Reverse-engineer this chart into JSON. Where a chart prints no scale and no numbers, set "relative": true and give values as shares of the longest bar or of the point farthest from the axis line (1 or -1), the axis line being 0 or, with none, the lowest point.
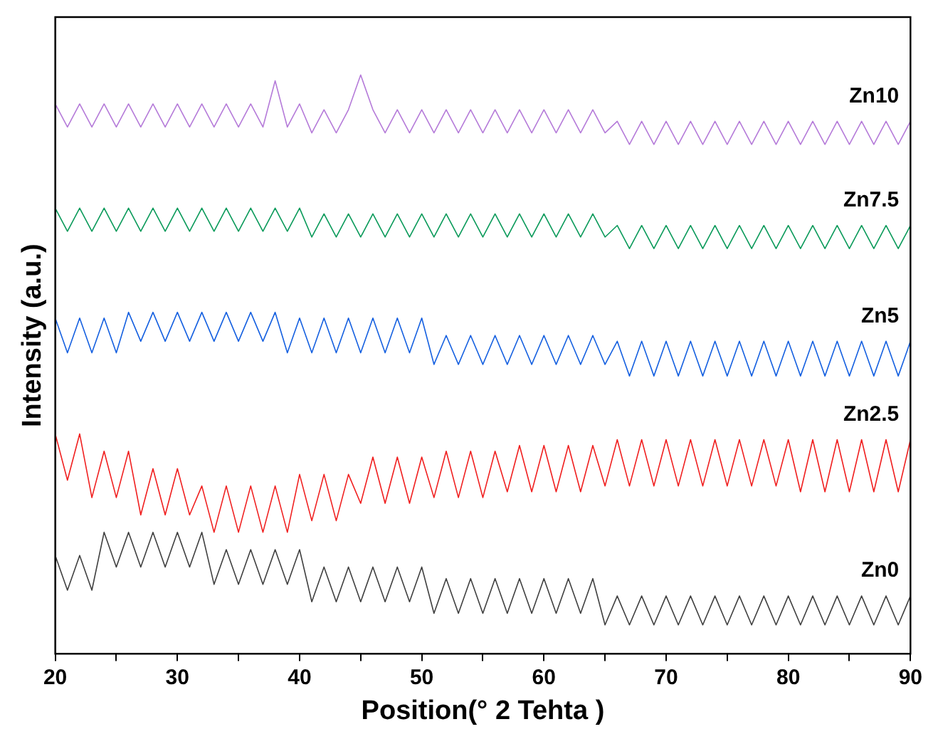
{
  "chart_data": {
    "type": "line",
    "relative": true,
    "xlabel": "Position(° 2 Tehta )",
    "ylabel": "Intensity (a.u.)",
    "grid": false,
    "legend": false,
    "marker": "none",
    "line_style": "solid",
    "xlim": [
      20,
      90
    ],
    "xticks": [
      20,
      {
        "value": 25,
        "label": null
      },
      30,
      {
        "value": 35,
        "label": null
      },
      40,
      {
        "value": 45,
        "label": null
      },
      50,
      {
        "value": 55,
        "label": null
      },
      60,
      {
        "value": 65,
        "label": null
      },
      70,
      {
        "value": 75,
        "label": null
      },
      80,
      {
        "value": 85,
        "label": null
      },
      90
    ],
    "x": [
      20,
      21,
      22,
      23,
      24,
      25,
      26,
      27,
      28,
      29,
      30,
      31,
      32,
      33,
      34,
      35,
      36,
      37,
      38,
      39,
      40,
      41,
      42,
      43,
      44,
      45,
      46,
      47,
      48,
      49,
      50,
      51,
      52,
      53,
      54,
      55,
      56,
      57,
      58,
      59,
      60,
      61,
      62,
      63,
      64,
      65,
      66,
      67,
      68,
      69,
      70,
      71,
      72,
      73,
      74,
      75,
      76,
      77,
      78,
      79,
      80,
      81,
      82,
      83,
      84,
      85,
      86,
      87,
      88,
      89,
      90
    ],
    "series": [
      {
        "name": "Zn10",
        "color": "#b57bd9",
        "values": [
          0.95,
          0.91,
          0.95,
          0.91,
          0.95,
          0.91,
          0.95,
          0.91,
          0.95,
          0.91,
          0.95,
          0.91,
          0.95,
          0.91,
          0.95,
          0.91,
          0.95,
          0.91,
          0.99,
          0.91,
          0.95,
          0.9,
          0.94,
          0.9,
          0.94,
          1,
          0.94,
          0.9,
          0.94,
          0.9,
          0.94,
          0.9,
          0.94,
          0.9,
          0.94,
          0.9,
          0.94,
          0.9,
          0.94,
          0.9,
          0.94,
          0.9,
          0.94,
          0.9,
          0.94,
          0.9,
          0.92,
          0.88,
          0.92,
          0.88,
          0.92,
          0.88,
          0.92,
          0.88,
          0.92,
          0.88,
          0.92,
          0.88,
          0.92,
          0.88,
          0.92,
          0.88,
          0.92,
          0.88,
          0.92,
          0.88,
          0.92,
          0.88,
          0.92,
          0.88,
          0.92
        ]
      },
      {
        "name": "Zn7.5",
        "color": "#0a9a5a",
        "values": [
          0.77,
          0.73,
          0.77,
          0.73,
          0.77,
          0.73,
          0.77,
          0.73,
          0.77,
          0.73,
          0.77,
          0.73,
          0.77,
          0.73,
          0.77,
          0.73,
          0.77,
          0.73,
          0.77,
          0.73,
          0.77,
          0.72,
          0.76,
          0.72,
          0.76,
          0.72,
          0.76,
          0.72,
          0.76,
          0.72,
          0.76,
          0.72,
          0.76,
          0.72,
          0.76,
          0.72,
          0.76,
          0.72,
          0.76,
          0.72,
          0.76,
          0.72,
          0.76,
          0.72,
          0.76,
          0.72,
          0.74,
          0.7,
          0.74,
          0.7,
          0.74,
          0.7,
          0.74,
          0.7,
          0.74,
          0.7,
          0.74,
          0.7,
          0.74,
          0.7,
          0.74,
          0.7,
          0.74,
          0.7,
          0.74,
          0.7,
          0.74,
          0.7,
          0.74,
          0.7,
          0.74
        ]
      },
      {
        "name": "Zn5",
        "color": "#1560e0",
        "values": [
          0.58,
          0.52,
          0.58,
          0.52,
          0.58,
          0.52,
          0.59,
          0.54,
          0.59,
          0.54,
          0.59,
          0.54,
          0.59,
          0.54,
          0.59,
          0.54,
          0.59,
          0.54,
          0.59,
          0.52,
          0.58,
          0.52,
          0.58,
          0.52,
          0.58,
          0.52,
          0.58,
          0.52,
          0.58,
          0.52,
          0.58,
          0.5,
          0.55,
          0.5,
          0.55,
          0.5,
          0.55,
          0.5,
          0.55,
          0.5,
          0.55,
          0.5,
          0.55,
          0.5,
          0.55,
          0.5,
          0.54,
          0.48,
          0.54,
          0.48,
          0.54,
          0.48,
          0.54,
          0.48,
          0.54,
          0.48,
          0.54,
          0.48,
          0.54,
          0.48,
          0.54,
          0.48,
          0.54,
          0.48,
          0.54,
          0.48,
          0.54,
          0.48,
          0.54,
          0.48,
          0.54
        ]
      },
      {
        "name": "Zn2.5",
        "color": "#f02020",
        "values": [
          0.38,
          0.3,
          0.38,
          0.27,
          0.35,
          0.27,
          0.35,
          0.24,
          0.32,
          0.24,
          0.32,
          0.24,
          0.29,
          0.21,
          0.29,
          0.21,
          0.29,
          0.21,
          0.29,
          0.21,
          0.31,
          0.23,
          0.31,
          0.23,
          0.31,
          0.26,
          0.34,
          0.26,
          0.34,
          0.26,
          0.34,
          0.27,
          0.35,
          0.27,
          0.35,
          0.27,
          0.35,
          0.28,
          0.36,
          0.28,
          0.36,
          0.28,
          0.36,
          0.28,
          0.36,
          0.29,
          0.37,
          0.29,
          0.37,
          0.29,
          0.37,
          0.29,
          0.37,
          0.29,
          0.37,
          0.29,
          0.37,
          0.29,
          0.37,
          0.29,
          0.37,
          0.28,
          0.37,
          0.28,
          0.37,
          0.28,
          0.37,
          0.28,
          0.37,
          0.28,
          0.37
        ]
      },
      {
        "name": "Zn0",
        "color": "#404040",
        "values": [
          0.17,
          0.11,
          0.17,
          0.11,
          0.21,
          0.15,
          0.21,
          0.15,
          0.21,
          0.15,
          0.21,
          0.15,
          0.21,
          0.12,
          0.18,
          0.12,
          0.18,
          0.12,
          0.18,
          0.12,
          0.18,
          0.09,
          0.15,
          0.09,
          0.15,
          0.09,
          0.15,
          0.09,
          0.15,
          0.09,
          0.15,
          0.07,
          0.13,
          0.07,
          0.13,
          0.07,
          0.13,
          0.07,
          0.13,
          0.07,
          0.13,
          0.07,
          0.13,
          0.07,
          0.13,
          0.05,
          0.1,
          0.05,
          0.1,
          0.05,
          0.1,
          0.05,
          0.1,
          0.05,
          0.1,
          0.05,
          0.1,
          0.05,
          0.1,
          0.05,
          0.1,
          0.05,
          0.1,
          0.05,
          0.1,
          0.05,
          0.1,
          0.05,
          0.1,
          0.05,
          0.1
        ]
      }
    ]
  }
}
